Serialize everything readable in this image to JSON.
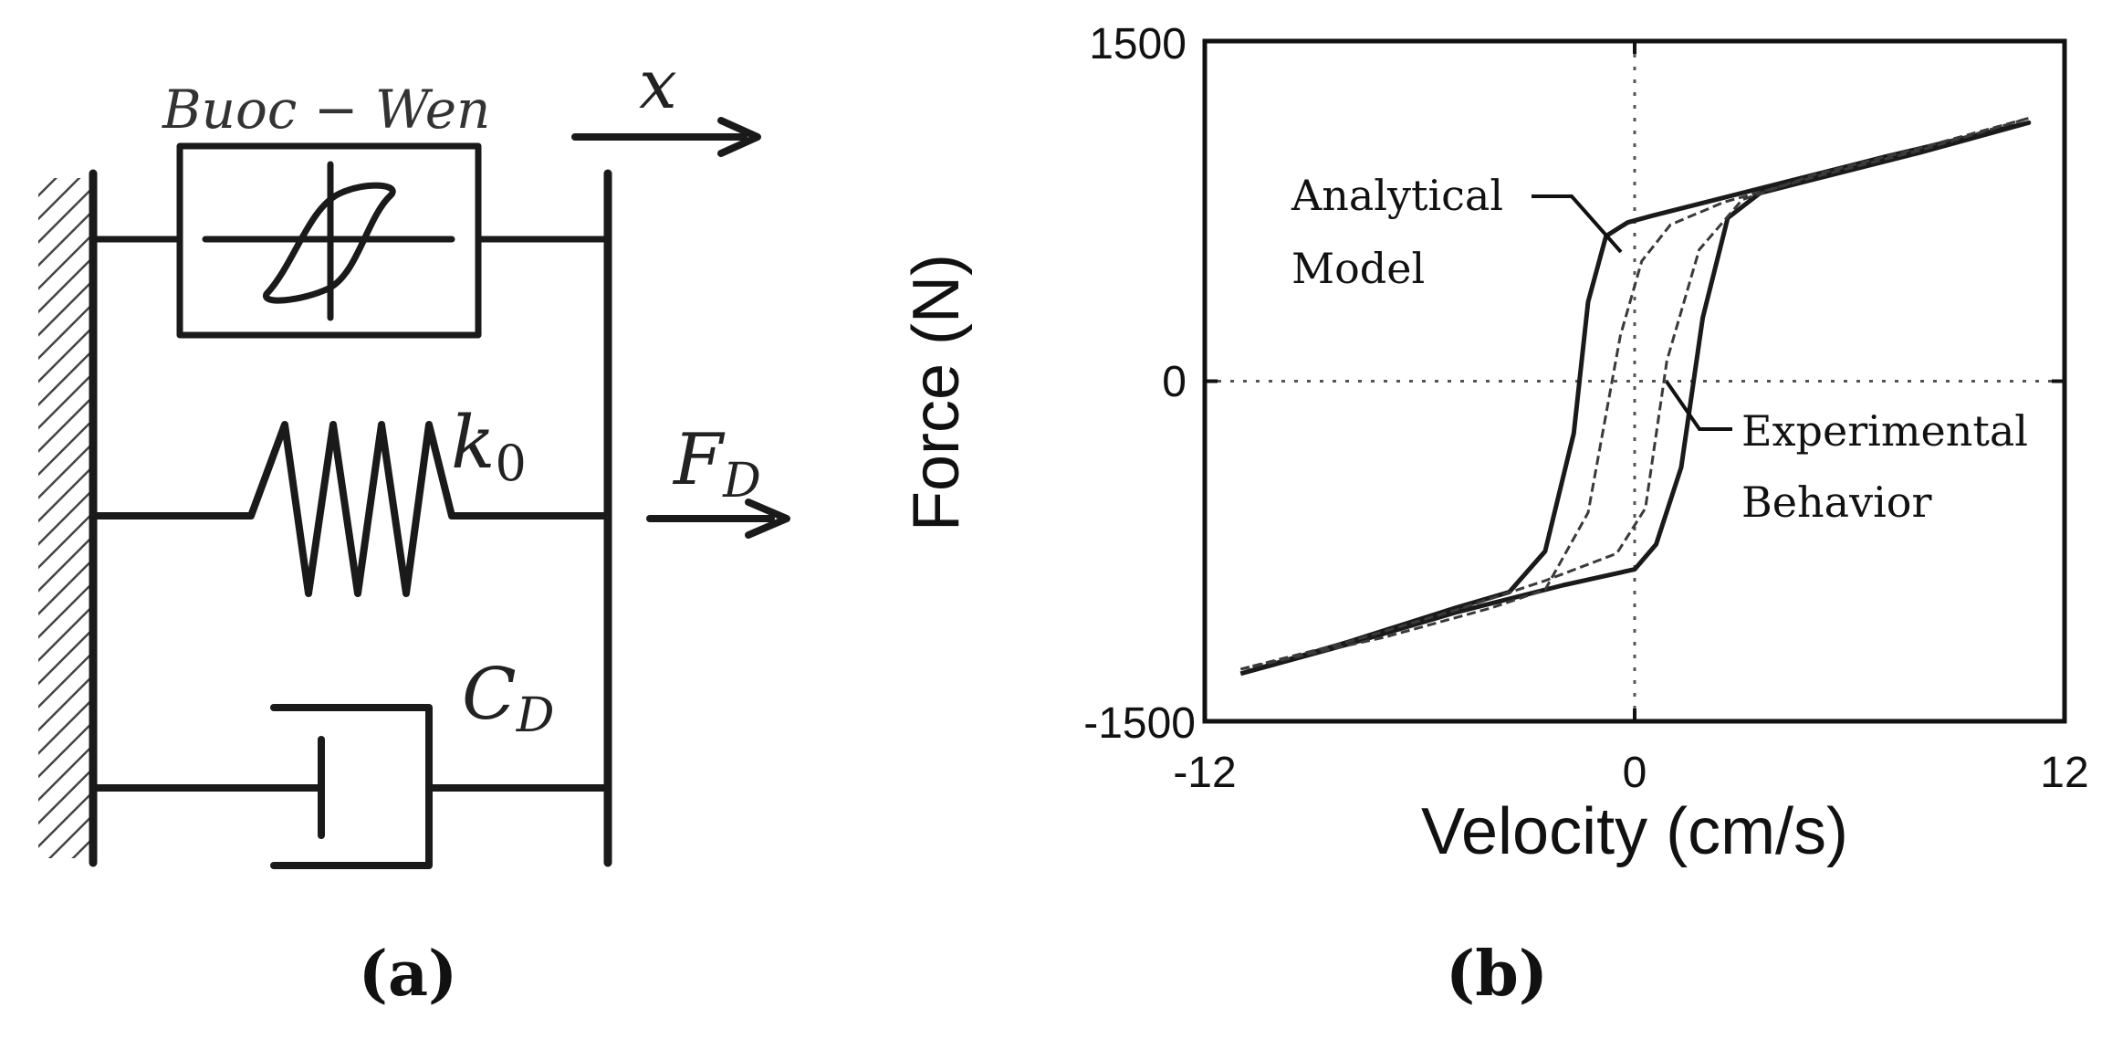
{
  "panel_a": {
    "caption": "(a)",
    "element_label": "Buoc − Wen",
    "displacement_symbol": "x",
    "stiffness_symbol": "k",
    "stiffness_subscript": "0",
    "force_symbol": "F",
    "force_subscript": "D",
    "damping_symbol": "C",
    "damping_subscript": "D"
  },
  "panel_b": {
    "caption": "(b)",
    "annotations": {
      "analytical_line1": "Analytical",
      "analytical_line2": "Model",
      "experimental_line1": "Experimental",
      "experimental_line2": "Behavior"
    }
  },
  "chart_data": {
    "type": "line",
    "title": "",
    "xlabel": "Velocity (cm/s)",
    "ylabel": "Force (N)",
    "xlim": [
      -12,
      12
    ],
    "ylim": [
      -1500,
      1500
    ],
    "xticks": [
      "-12",
      "0",
      "12"
    ],
    "yticks": [
      "1500",
      "0",
      "-1500"
    ],
    "grid": "dotted lines at x=0 and y=0",
    "series": [
      {
        "name": "Analytical Model",
        "x": [
          -11,
          -8,
          -5,
          -3.5,
          -2.5,
          -1.7,
          -1.3,
          -0.8,
          -0.2,
          0.5,
          2,
          4,
          7,
          11,
          8,
          5,
          3.5,
          2.6,
          1.9,
          1.3,
          0.6,
          0,
          -2,
          -5,
          -8,
          -11
        ],
        "y": [
          -1290,
          -1150,
          -1000,
          -930,
          -750,
          -230,
          350,
          640,
          700,
          730,
          790,
          870,
          990,
          1140,
          1010,
          890,
          830,
          720,
          280,
          -380,
          -720,
          -830,
          -900,
          -1020,
          -1160,
          -1290
        ]
      },
      {
        "name": "Experimental Behavior",
        "x": [
          -11,
          -7,
          -4,
          -2.5,
          -1.3,
          -0.4,
          0.2,
          1,
          2.5,
          5,
          8,
          11,
          8,
          5,
          3,
          1.8,
          0.9,
          0.3,
          -0.5,
          -2.5,
          -5,
          -8,
          -11
        ],
        "y": [
          -1270,
          -1130,
          -1000,
          -920,
          -580,
          200,
          530,
          690,
          790,
          900,
          1020,
          1160,
          1030,
          910,
          800,
          580,
          90,
          -560,
          -760,
          -880,
          -1010,
          -1150,
          -1270
        ]
      }
    ]
  }
}
